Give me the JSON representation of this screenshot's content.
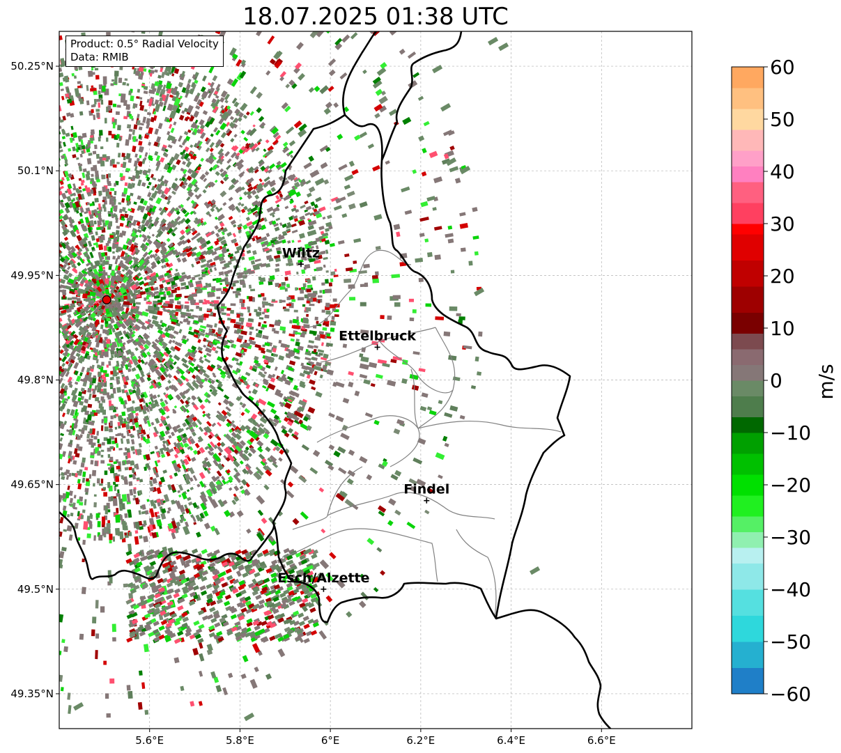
{
  "title": "18.07.2025 01:38 UTC",
  "info_box": {
    "product": "Product: 0.5° Radial Velocity",
    "data": "Data: RMIB"
  },
  "map": {
    "lon_range": [
      5.4,
      6.8
    ],
    "lat_range": [
      49.3,
      50.3
    ],
    "lon_ticks": [
      5.6,
      5.8,
      6.0,
      6.2,
      6.4,
      6.6
    ],
    "lon_tick_labels": [
      "5.6°E",
      "5.8°E",
      "6°E",
      "6.2°E",
      "6.4°E",
      "6.6°E"
    ],
    "lat_ticks": [
      50.25,
      50.1,
      49.95,
      49.8,
      49.65,
      49.5,
      49.35
    ],
    "lat_tick_labels": [
      "50.25°N",
      "50.1°N",
      "49.95°N",
      "49.8°N",
      "49.65°N",
      "49.5°N",
      "49.35°N"
    ],
    "grid": true,
    "radar_site": {
      "lon": 5.505,
      "lat": 49.915
    },
    "cities": [
      {
        "name": "Wiltz",
        "lon": 5.935,
        "lat": 49.966
      },
      {
        "name": "Ettelbruck",
        "lon": 6.104,
        "lat": 49.847
      },
      {
        "name": "Findel",
        "lon": 6.213,
        "lat": 49.627
      },
      {
        "name": "Esch/Alzette",
        "lon": 5.985,
        "lat": 49.5
      }
    ]
  },
  "colorbar": {
    "label": "m/s",
    "vmin": -60,
    "vmax": 60,
    "ticks": [
      60,
      50,
      40,
      30,
      20,
      10,
      0,
      -10,
      -20,
      -30,
      -40,
      -50,
      -60
    ],
    "tick_labels": [
      "60",
      "50",
      "40",
      "30",
      "20",
      "10",
      "0",
      "−10",
      "−20",
      "−30",
      "−40",
      "−50",
      "−60"
    ]
  },
  "colors": {
    "background_echo": "#857777",
    "near_zero_green": "#6a8a66",
    "strong_outbound": "#d40000",
    "strong_inbound": "#0ad40a"
  }
}
